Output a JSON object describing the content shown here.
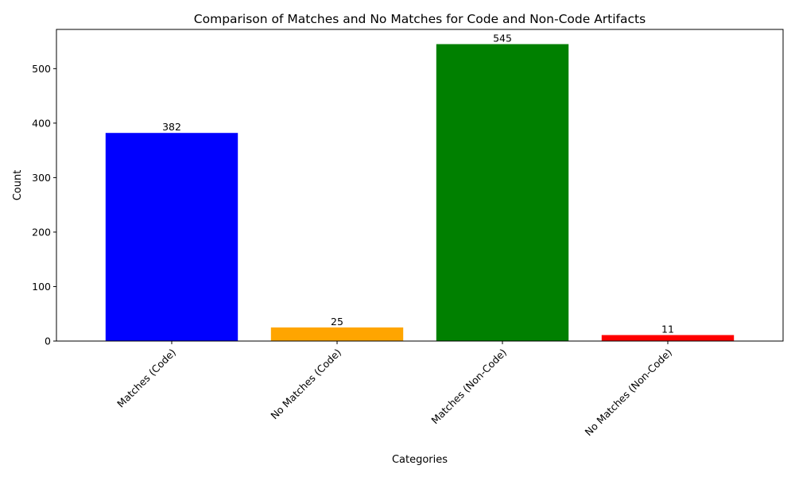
{
  "chart_data": {
    "type": "bar",
    "title": "Comparison of Matches and No Matches for Code and Non-Code Artifacts",
    "xlabel": "Categories",
    "ylabel": "Count",
    "categories": [
      "Matches (Code)",
      "No Matches (Code)",
      "Matches (Non-Code)",
      "No Matches (Non-Code)"
    ],
    "values": [
      382,
      25,
      545,
      11
    ],
    "data_labels": [
      "382",
      "25",
      "545",
      "11"
    ],
    "colors": [
      "#0000ff",
      "#ffa500",
      "#008000",
      "#ff0000"
    ],
    "ylim": [
      0,
      572
    ],
    "yticks": [
      0,
      100,
      200,
      300,
      400,
      500
    ],
    "ytick_labels": [
      "0",
      "100",
      "200",
      "300",
      "400",
      "500"
    ],
    "grid": false,
    "legend": false
  }
}
